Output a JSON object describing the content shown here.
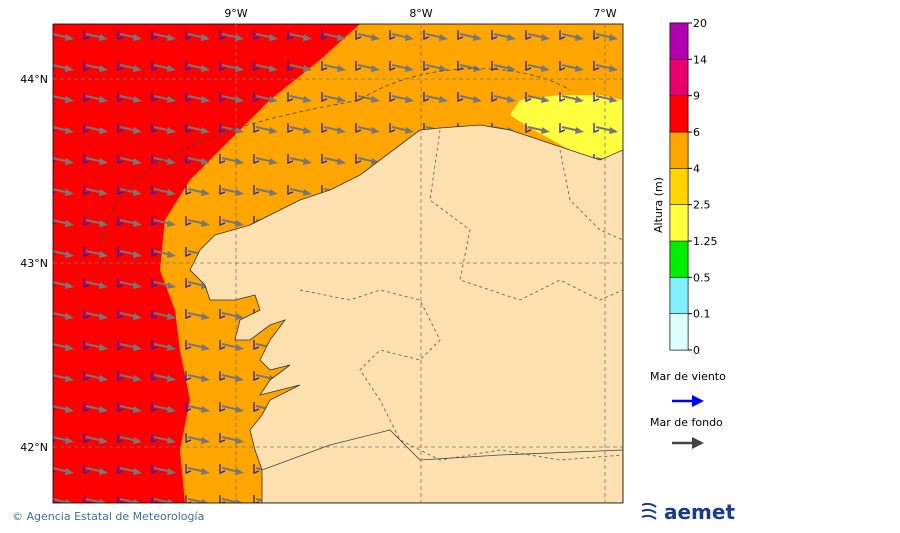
{
  "map": {
    "lon_labels": [
      "9°W",
      "8°W",
      "7°W"
    ],
    "lat_labels": [
      "44°N",
      "43°N",
      "42°N"
    ]
  },
  "colorbar": {
    "label": "Altura (m)",
    "levels": [
      0,
      0.1,
      0.5,
      1.25,
      2.5,
      4,
      6,
      9,
      14,
      20
    ],
    "colors": [
      "#dcfeff",
      "#80eefc",
      "#00ee00",
      "#ffff40",
      "#ffd400",
      "#ffa500",
      "#ff0000",
      "#e8006e",
      "#b000b0"
    ]
  },
  "legend": {
    "items": [
      {
        "label": "Mar de viento",
        "color": "#0000ff"
      },
      {
        "label": "Mar de fondo",
        "color": "#444444"
      }
    ]
  },
  "footer": {
    "credit": "© Agencia Estatal de Meteorología",
    "logo": "aemet"
  }
}
